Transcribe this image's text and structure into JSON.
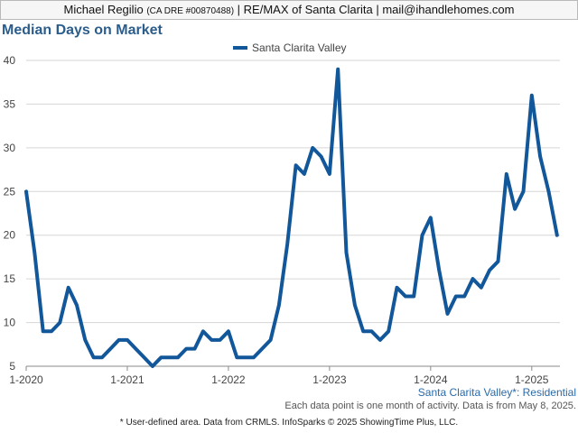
{
  "header": {
    "agent_name": "Michael Regilio",
    "license": "(CA DRE #00870488)",
    "rest": "| RE/MAX of Santa Clarita | mail@ihandlehomes.com"
  },
  "footer": {
    "area_label": "Santa Clarita Valley*: Residential",
    "note": "Each data point is one month of activity. Data is from May 8, 2025.",
    "source": "* User-defined area. Data from CRMLS. InfoSparks © 2025 ShowingTime Plus, LLC."
  },
  "colors": {
    "series": "#12579a",
    "title": "#2b5d8c",
    "grid": "#d6d6d6"
  },
  "chart_data": {
    "type": "line",
    "title": "Median Days on Market",
    "xlabel": "",
    "ylabel": "",
    "ylim": [
      5,
      40
    ],
    "yticks": [
      5,
      10,
      15,
      20,
      25,
      30,
      35,
      40
    ],
    "x_tick_labels": [
      "1-2020",
      "1-2021",
      "1-2022",
      "1-2023",
      "1-2024",
      "1-2025"
    ],
    "legend": "top-center",
    "grid": true,
    "series": [
      {
        "name": "Santa Clarita Valley",
        "start": "1-2020",
        "interval": "month",
        "values": [
          25,
          18,
          9,
          9,
          10,
          14,
          12,
          8,
          6,
          6,
          7,
          8,
          8,
          7,
          6,
          5,
          6,
          6,
          6,
          7,
          7,
          9,
          8,
          8,
          9,
          6,
          6,
          6,
          7,
          8,
          12,
          19,
          28,
          27,
          30,
          29,
          27,
          39,
          18,
          12,
          9,
          9,
          8,
          9,
          14,
          13,
          13,
          20,
          22,
          16,
          11,
          13,
          13,
          15,
          14,
          16,
          17,
          27,
          23,
          25,
          36,
          29,
          25,
          20
        ]
      }
    ]
  }
}
